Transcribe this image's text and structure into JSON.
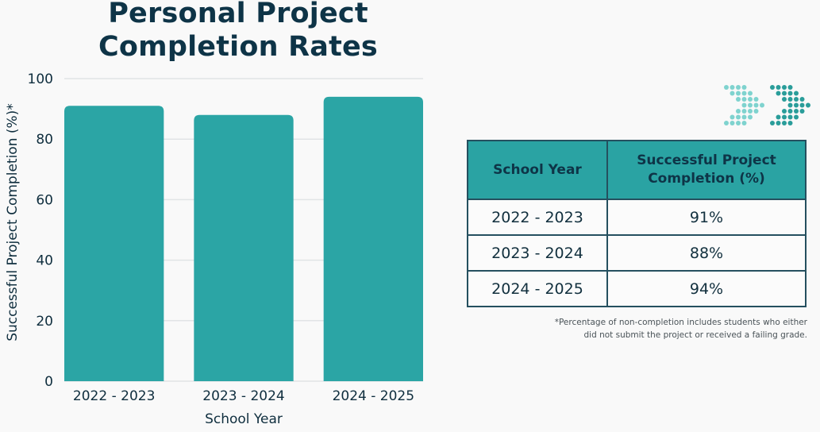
{
  "title_line1": "Personal Project",
  "title_line2": "Completion Rates",
  "chart_data": {
    "type": "bar",
    "title": "Personal Project Completion Rates",
    "categories": [
      "2022 - 2023",
      "2023 - 2024",
      "2024 - 2025"
    ],
    "values": [
      91,
      88,
      94
    ],
    "xlabel": "School Year",
    "ylabel": "Successful Project Completion (%)*",
    "ylim": [
      0,
      100
    ],
    "yticks": [
      0,
      20,
      40,
      60,
      80,
      100
    ],
    "grid": true,
    "bar_color": "#2ba5a5"
  },
  "table": {
    "headers": [
      "School Year",
      "Successful Project Completion (%)"
    ],
    "header_col2_line1": "Successful Project",
    "header_col2_line2": "Completion (%)",
    "rows": [
      {
        "year": "2022 - 2023",
        "value": "91%"
      },
      {
        "year": "2023 - 2024",
        "value": "88%"
      },
      {
        "year": "2024 - 2025",
        "value": "94%"
      }
    ]
  },
  "footnote_line1": "*Percentage of non-completion includes students who either",
  "footnote_line2": "did not submit the project or received a failing grade.",
  "logo": {
    "name": "double-chevron-dots-logo",
    "light_color": "#7fd3cf",
    "dark_color": "#2a9d9a"
  }
}
